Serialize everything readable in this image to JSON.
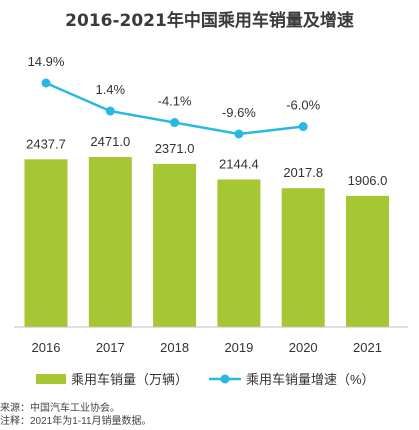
{
  "title": "2016-2021年中国乘用车销量及增速",
  "chart_data": {
    "type": "bar",
    "categories": [
      "2016",
      "2017",
      "2018",
      "2019",
      "2020",
      "2021"
    ],
    "series": [
      {
        "name": "乘用车销量（万辆）",
        "type": "bar",
        "values": [
          2437.7,
          2471.0,
          2371.0,
          2144.4,
          2017.8,
          1906.0
        ],
        "labels": [
          "2437.7",
          "2471.0",
          "2371.0",
          "2144.4",
          "2017.8",
          "1906.0"
        ]
      },
      {
        "name": "乘用车销量增速（%）",
        "type": "line",
        "values": [
          14.9,
          1.4,
          -4.1,
          -9.6,
          -6.0,
          null
        ],
        "labels": [
          "14.9%",
          "1.4%",
          "-4.1%",
          "-9.6%",
          "-6.0%",
          ""
        ]
      }
    ],
    "colors": {
      "bar": "#a7c634",
      "line": "#29b8e3"
    },
    "legend_position": "bottom",
    "grid": false
  },
  "notes": [
    "来源：中国汽车工业协会。",
    "注释：2021年为1-11月销量数据。"
  ]
}
